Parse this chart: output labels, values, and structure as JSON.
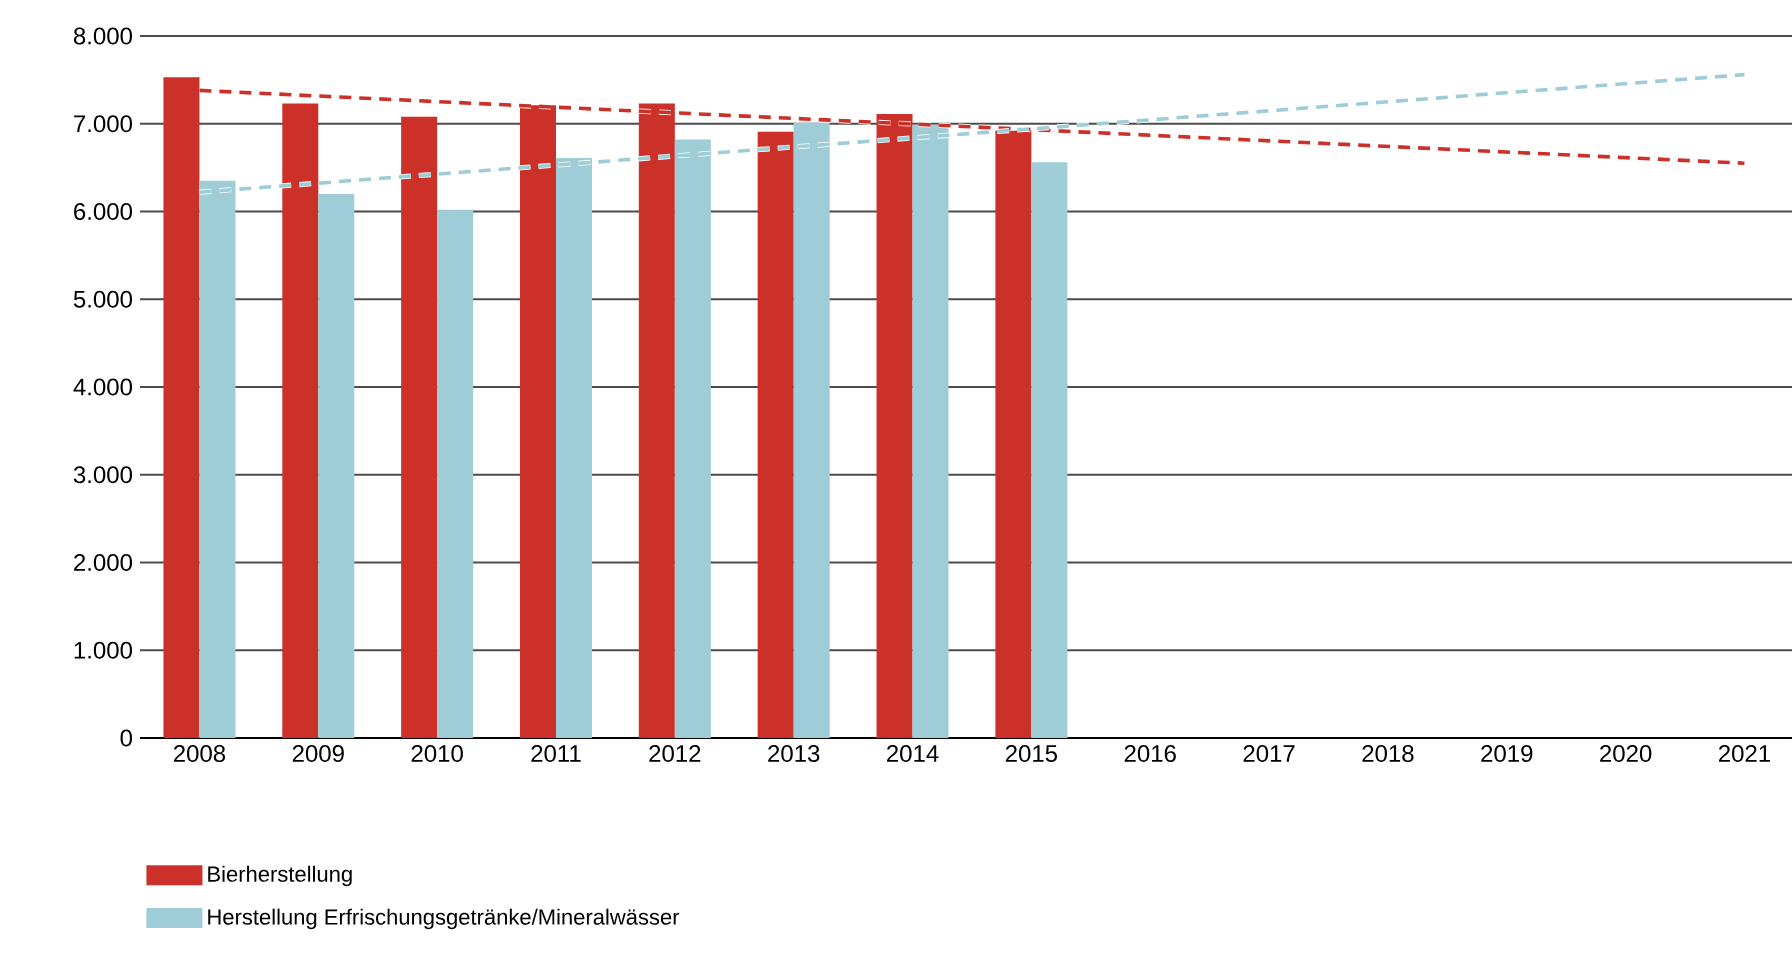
{
  "chart_data": {
    "type": "bar",
    "categories": [
      "2008",
      "2009",
      "2010",
      "2011",
      "2012",
      "2013",
      "2014",
      "2015",
      "2016",
      "2017",
      "2018",
      "2019",
      "2020",
      "2021"
    ],
    "series": [
      {
        "name": "Bierherstellung",
        "color": "#cc3129",
        "values": [
          7530,
          7230,
          7080,
          7210,
          7230,
          6910,
          7110,
          6920,
          null,
          null,
          null,
          null,
          null,
          null
        ]
      },
      {
        "name": "Herstellung Erfrischungsgetränke/Mineralwässer",
        "color": "#9ecdd8",
        "values": [
          6350,
          6200,
          6020,
          6610,
          6820,
          7010,
          6990,
          6560,
          null,
          null,
          null,
          null,
          null,
          null
        ]
      },
      {
        "type": "line",
        "color": "#cc3129",
        "line_style": "dashed",
        "values": [
          7380,
          null,
          null,
          null,
          null,
          null,
          null,
          null,
          null,
          null,
          null,
          null,
          null,
          6550
        ]
      },
      {
        "type": "line",
        "color": "#9ecdd8",
        "line_style": "dashed",
        "values": [
          6220,
          null,
          null,
          null,
          null,
          null,
          null,
          null,
          null,
          null,
          null,
          null,
          null,
          7560
        ]
      }
    ],
    "ylim": [
      0,
      8000
    ],
    "yticks": [
      0,
      {
        "value": 1000,
        "label": "1.000"
      },
      {
        "value": 2000,
        "label": "2.000"
      },
      {
        "value": 3000,
        "label": "3.000"
      },
      {
        "value": 4000,
        "label": "4.000"
      },
      {
        "value": 5000,
        "label": "5.000"
      },
      {
        "value": 6000,
        "label": "6.000"
      },
      {
        "value": 7000,
        "label": "7.000"
      },
      {
        "value": 8000,
        "label": "8.000"
      }
    ],
    "grid": "y",
    "legend": "bottom left"
  }
}
